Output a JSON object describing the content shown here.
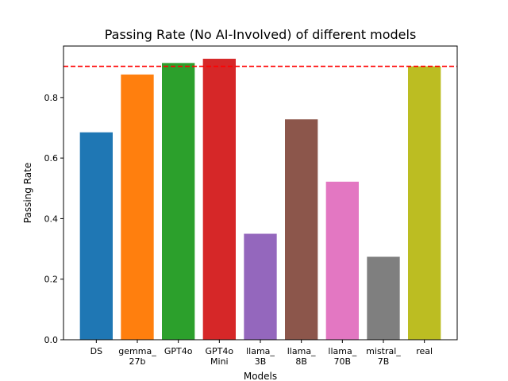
{
  "chart_data": {
    "type": "bar",
    "title": "Passing Rate (No AI-Involved) of different models",
    "xlabel": "Models",
    "ylabel": "Passing Rate",
    "categories": [
      [
        "DS"
      ],
      [
        "gemma_",
        "27b"
      ],
      [
        "GPT4o"
      ],
      [
        "GPT4o",
        "Mini"
      ],
      [
        "llama_",
        "3B"
      ],
      [
        "llama_",
        "8B"
      ],
      [
        "llama_",
        "70B"
      ],
      [
        "mistral_",
        "7B"
      ],
      [
        "real"
      ]
    ],
    "values": [
      0.685,
      0.876,
      0.914,
      0.928,
      0.35,
      0.728,
      0.522,
      0.274,
      0.903
    ],
    "colors": [
      "#1f77b4",
      "#ff7f0e",
      "#2ca02c",
      "#d62728",
      "#9467bd",
      "#8c564b",
      "#e377c2",
      "#7f7f7f",
      "#bcbd22"
    ],
    "reference_line": {
      "value": 0.903,
      "color": "#ff0000",
      "style": "dashed"
    },
    "ylim": [
      0,
      0.97
    ],
    "yticks": [
      0.0,
      0.2,
      0.4,
      0.6,
      0.8
    ],
    "ytick_labels": [
      "0.0",
      "0.2",
      "0.4",
      "0.6",
      "0.8"
    ],
    "grid": false,
    "legend": false
  }
}
